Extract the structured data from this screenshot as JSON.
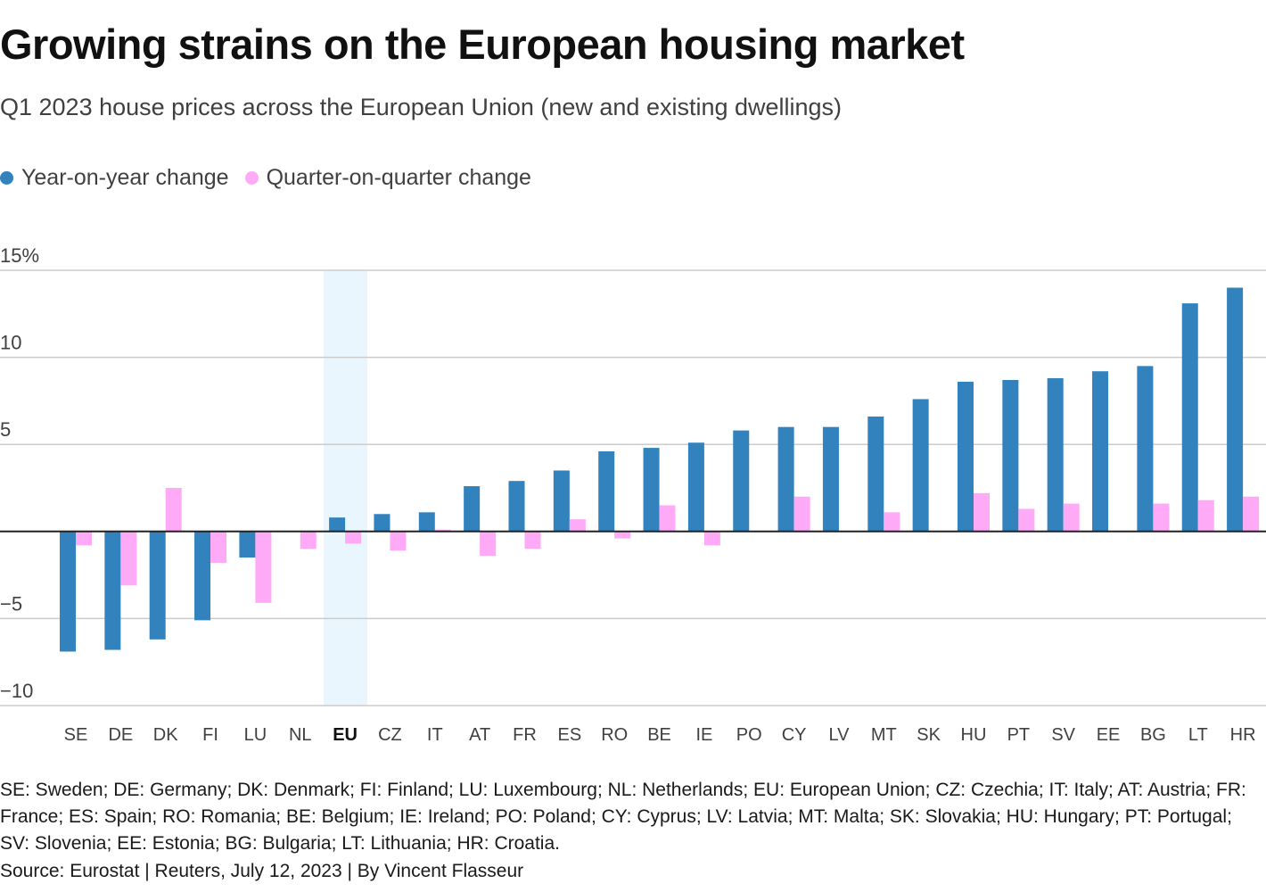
{
  "title": "Growing strains on the European housing market",
  "subtitle": "Q1 2023 house prices across the European Union (new and existing dwellings)",
  "footnote": "SE: Sweden; DE: Germany; DK: Denmark; FI: Finland; LU: Luxembourg; NL: Netherlands; EU: European Union; CZ: Czechia; IT: Italy; AT: Austria; FR: France; ES: Spain; RO: Romania; BE: Belgium; IE: Ireland; PO: Poland; CY: Cyprus; LV: Latvia; MT: Malta; SK: Slovakia; HU: Hungary; PT: Portugal; SV: Slovenia; EE: Estonia; BG: Bulgaria; LT: Lithuania; HR: Croatia.",
  "source": "Source: Eurostat | Reuters, July 12, 2023 | By Vincent Flasseur",
  "colors": {
    "yoy": "#3282be",
    "qoq": "#ffaaf6",
    "highlight": "#eaf6fd",
    "grid": "#cccccc",
    "zero": "#222222"
  },
  "chart_data": {
    "type": "bar",
    "title": "Growing strains on the European housing market",
    "subtitle": "Q1 2023 house prices across the European Union (new and existing dwellings)",
    "categories": [
      "SE",
      "DE",
      "DK",
      "FI",
      "LU",
      "NL",
      "EU",
      "CZ",
      "IT",
      "AT",
      "FR",
      "ES",
      "RO",
      "BE",
      "IE",
      "PO",
      "CY",
      "LV",
      "MT",
      "SK",
      "HU",
      "PT",
      "SV",
      "EE",
      "BG",
      "LT",
      "HR"
    ],
    "highlighted_category": "EU",
    "series": [
      {
        "name": "Year-on-year change",
        "values": [
          -6.9,
          -6.8,
          -6.2,
          -5.1,
          -1.5,
          0.0,
          0.8,
          1.0,
          1.1,
          2.6,
          2.9,
          3.5,
          4.6,
          4.8,
          5.1,
          5.8,
          6.0,
          6.0,
          6.6,
          7.6,
          8.6,
          8.7,
          8.8,
          9.2,
          9.5,
          13.1,
          14.0
        ]
      },
      {
        "name": "Quarter-on-quarter change",
        "values": [
          -0.8,
          -3.1,
          2.5,
          -1.8,
          -4.1,
          -1.0,
          -0.7,
          -1.1,
          0.1,
          -1.4,
          -1.0,
          0.7,
          -0.4,
          1.5,
          -0.8,
          0.0,
          2.0,
          0.0,
          1.1,
          0.0,
          2.2,
          1.3,
          1.6,
          0.0,
          1.6,
          1.8,
          2.0
        ]
      }
    ],
    "y_ticks": [
      {
        "value": 15,
        "label": "15%"
      },
      {
        "value": 10,
        "label": "10"
      },
      {
        "value": 5,
        "label": "5"
      },
      {
        "value": 0,
        "label": ""
      },
      {
        "value": -5,
        "label": "−5"
      },
      {
        "value": -10,
        "label": "−10"
      }
    ],
    "ylim": [
      -10,
      15
    ],
    "grid": true,
    "legend": "top-left"
  }
}
